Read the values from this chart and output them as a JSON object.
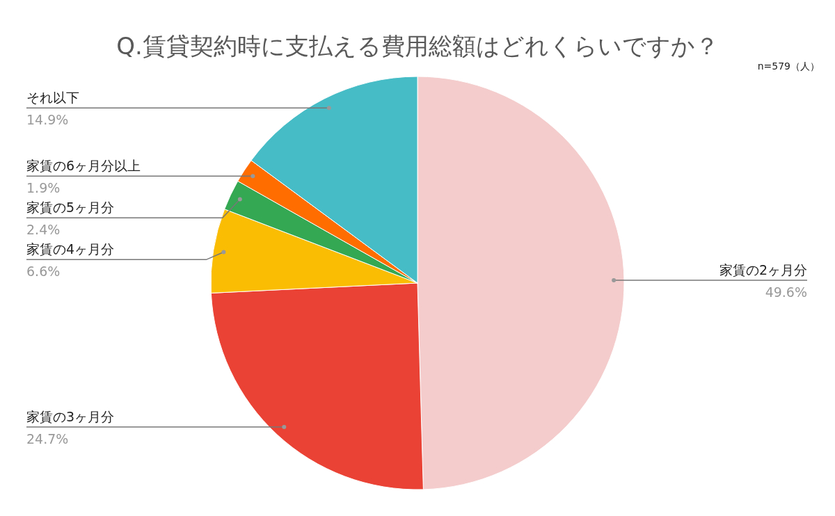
{
  "chart_data": {
    "type": "pie",
    "title": "Q.賃貸契約時に支払える費用総額はどれくらいですか？",
    "categories": [
      "家賃の2ヶ月分",
      "家賃の3ヶ月分",
      "家賃の4ヶ月分",
      "家賃の5ヶ月分",
      "家賃の6ヶ月分以上",
      "それ以下"
    ],
    "values": [
      49.6,
      24.7,
      6.6,
      2.4,
      1.9,
      14.9
    ],
    "value_labels": [
      "49.6%",
      "24.7%",
      "6.6%",
      "2.4%",
      "1.9%",
      "14.9%"
    ],
    "colors": [
      "#f4cccc",
      "#ea4335",
      "#fbbc04",
      "#34a853",
      "#ff6d01",
      "#46bdc6"
    ],
    "annotations": [
      "n=579（人）"
    ]
  }
}
